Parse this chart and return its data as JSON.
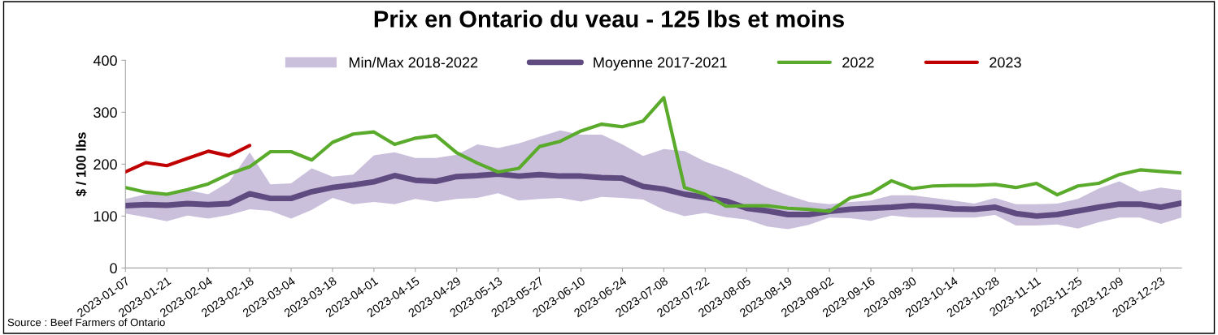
{
  "chart_data": {
    "type": "line",
    "title": "Prix en Ontario du veau - 125 lbs et moins",
    "ylabel": "$ / 100 lbs",
    "categories": [
      "2023-01-07",
      null,
      "2023-01-21",
      null,
      "2023-02-04",
      null,
      "2023-02-18",
      null,
      "2023-03-04",
      null,
      "2023-03-18",
      null,
      "2023-04-01",
      null,
      "2023-04-15",
      null,
      "2023-04-29",
      null,
      "2023-05-13",
      null,
      "2023-05-27",
      null,
      "2023-06-10",
      null,
      "2023-06-24",
      null,
      "2023-07-08",
      null,
      "2023-07-22",
      null,
      "2023-08-05",
      null,
      "2023-08-19",
      null,
      "2023-09-02",
      null,
      "2023-09-16",
      null,
      "2023-09-30",
      null,
      "2023-10-14",
      null,
      "2023-10-28",
      null,
      "2023-11-11",
      null,
      "2023-11-25",
      null,
      "2023-12-09",
      null,
      "2023-12-23",
      null
    ],
    "series": [
      {
        "name": "Min/Max 2018-2022",
        "type": "area",
        "color": "#cbc0dc",
        "values": [
          null,
          null,
          null,
          null,
          null,
          null,
          null,
          null,
          null,
          null,
          null,
          null,
          null,
          null,
          null,
          null,
          null,
          null,
          null,
          null,
          null,
          null,
          null,
          null,
          null,
          null,
          null,
          null,
          null,
          null,
          null,
          null,
          null,
          null,
          null,
          null,
          null,
          null,
          null,
          null,
          null,
          null,
          null,
          null,
          null,
          null,
          null,
          null,
          null,
          null,
          null,
          null
        ],
        "lower": [
          105,
          98,
          90,
          101,
          95,
          102,
          113,
          110,
          95,
          112,
          135,
          123,
          127,
          123,
          133,
          127,
          133,
          135,
          144,
          130,
          133,
          135,
          128,
          137,
          135,
          132,
          112,
          100,
          106,
          98,
          93,
          80,
          75,
          83,
          97,
          96,
          91,
          101,
          97,
          97,
          97,
          97,
          102,
          82,
          82,
          84,
          76,
          88,
          97,
          97,
          85,
          97
        ],
        "upper": [
          133,
          142,
          144,
          150,
          142,
          166,
          223,
          161,
          163,
          192,
          176,
          180,
          217,
          223,
          212,
          212,
          218,
          238,
          231,
          240,
          253,
          265,
          257,
          257,
          238,
          216,
          229,
          225,
          205,
          191,
          174,
          155,
          140,
          127,
          123,
          127,
          130,
          140,
          140,
          135,
          130,
          124,
          135,
          123,
          123,
          124,
          133,
          153,
          167,
          147,
          155,
          150
        ]
      },
      {
        "name": "Moyenne 2017-2021",
        "color": "#5f4b80",
        "values": [
          120,
          122,
          121,
          124,
          122,
          124,
          143,
          134,
          134,
          147,
          155,
          160,
          166,
          178,
          169,
          167,
          176,
          178,
          181,
          177,
          180,
          177,
          177,
          174,
          173,
          157,
          152,
          142,
          136,
          129,
          115,
          110,
          103,
          103,
          109,
          113,
          115,
          117,
          120,
          118,
          114,
          113,
          117,
          105,
          100,
          103,
          110,
          117,
          123,
          123,
          117,
          125
        ]
      },
      {
        "name": "2022",
        "color": "#5aab2c",
        "values": [
          155,
          146,
          142,
          151,
          162,
          181,
          195,
          224,
          224,
          208,
          242,
          258,
          262,
          238,
          250,
          255,
          222,
          202,
          185,
          192,
          234,
          244,
          264,
          277,
          272,
          283,
          328,
          155,
          142,
          119,
          120,
          120,
          115,
          113,
          109,
          135,
          144,
          168,
          153,
          158,
          159,
          159,
          161,
          155,
          163,
          141,
          158,
          163,
          180,
          189,
          186,
          183
        ]
      },
      {
        "name": "2023",
        "color": "#c00000",
        "values": [
          185,
          203,
          197,
          211,
          225,
          216,
          236,
          null,
          null,
          null,
          null,
          null,
          null,
          null,
          null,
          null,
          null,
          null,
          null,
          null,
          null,
          null,
          null,
          null,
          null,
          null,
          null,
          null,
          null,
          null,
          null,
          null,
          null,
          null,
          null,
          null,
          null,
          null,
          null,
          null,
          null,
          null,
          null,
          null,
          null,
          null,
          null,
          null,
          null,
          null,
          null,
          null
        ]
      }
    ],
    "ylim": [
      0,
      400
    ],
    "yticks": [
      0,
      100,
      200,
      300,
      400
    ],
    "grid": false,
    "legend": "top",
    "annotations": [
      "Source : Beef Farmers of Ontario"
    ]
  }
}
